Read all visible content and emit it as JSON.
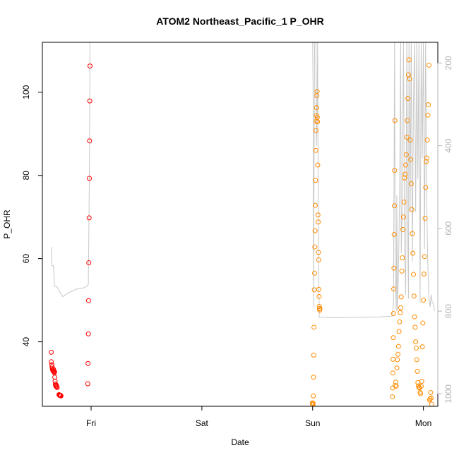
{
  "chart_data": {
    "type": "scatter",
    "title": "ATOM2 Northeast_Pacific_1 P_OHR",
    "xlabel": "Date",
    "ylabel": "P_OHR",
    "x_unit": "days since Thursday 00:00",
    "xlim": [
      2.56,
      6.13
    ],
    "ylim": [
      24.5,
      112
    ],
    "y_ticks": [
      40,
      60,
      80,
      100
    ],
    "x_ticks": [
      {
        "label": "Fri",
        "value": 3
      },
      {
        "label": "Sat",
        "value": 4
      },
      {
        "label": "Sun",
        "value": 5
      },
      {
        "label": "Mon",
        "value": 6
      }
    ],
    "y2": {
      "ylim": [
        1030,
        150
      ],
      "ticks": [
        200,
        400,
        600,
        800,
        1000
      ]
    },
    "colors": {
      "red": "#ff0000",
      "orange": "#ff8c00",
      "line": "#c8c8c8",
      "axis": "#000000",
      "axis2": "#b4b4b4"
    },
    "series": [
      {
        "name": "red",
        "points": [
          [
            2.64,
            37.5
          ],
          [
            2.64,
            35.2
          ],
          [
            2.645,
            34.5
          ],
          [
            2.648,
            34.0
          ],
          [
            2.65,
            33.5
          ],
          [
            2.653,
            33.2
          ],
          [
            2.656,
            33.0
          ],
          [
            2.66,
            33.4
          ],
          [
            2.663,
            33.0
          ],
          [
            2.665,
            32.8
          ],
          [
            2.668,
            32.6
          ],
          [
            2.67,
            32.8
          ],
          [
            2.672,
            31.5
          ],
          [
            2.675,
            30.5
          ],
          [
            2.678,
            29.8
          ],
          [
            2.68,
            29.5
          ],
          [
            2.683,
            29.3
          ],
          [
            2.686,
            29.6
          ],
          [
            2.69,
            29.2
          ],
          [
            2.693,
            29.0
          ],
          [
            2.71,
            27.3
          ],
          [
            2.713,
            27.2
          ],
          [
            2.716,
            27.1
          ],
          [
            2.719,
            27.2
          ],
          [
            2.722,
            27.1
          ],
          [
            2.725,
            27.1
          ],
          [
            2.728,
            27.0
          ],
          [
            2.97,
            29.9
          ],
          [
            2.972,
            34.8
          ],
          [
            2.975,
            41.9
          ],
          [
            2.977,
            49.9
          ],
          [
            2.979,
            59.0
          ],
          [
            2.982,
            69.8
          ],
          [
            2.984,
            79.3
          ],
          [
            2.986,
            88.3
          ],
          [
            2.988,
            97.9
          ],
          [
            2.99,
            106.3
          ]
        ]
      },
      {
        "name": "orange",
        "points": [
          [
            4.998,
            25.3
          ],
          [
            5.0,
            25.0
          ],
          [
            5.002,
            24.8
          ],
          [
            5.004,
            25.2
          ],
          [
            5.006,
            27.0
          ],
          [
            5.008,
            31.5
          ],
          [
            5.01,
            36.8
          ],
          [
            5.012,
            43.5
          ],
          [
            5.015,
            52.5
          ],
          [
            5.018,
            56.5
          ],
          [
            5.02,
            62.8
          ],
          [
            5.022,
            66.7
          ],
          [
            5.024,
            72.8
          ],
          [
            5.026,
            78.8
          ],
          [
            5.028,
            86.0
          ],
          [
            5.03,
            90.8
          ],
          [
            5.032,
            93.0
          ],
          [
            5.034,
            94.4
          ],
          [
            5.036,
            96.3
          ],
          [
            5.038,
            99.2
          ],
          [
            5.04,
            100.2
          ],
          [
            5.042,
            94.0
          ],
          [
            5.044,
            92.9
          ],
          [
            5.046,
            82.5
          ],
          [
            5.048,
            70.5
          ],
          [
            5.05,
            68.8
          ],
          [
            5.052,
            61.5
          ],
          [
            5.054,
            59.7
          ],
          [
            5.056,
            52.6
          ],
          [
            5.058,
            50.9
          ],
          [
            5.06,
            48.5
          ],
          [
            5.062,
            47.9
          ],
          [
            5.064,
            47.6
          ],
          [
            5.066,
            48.0
          ],
          [
            5.72,
            26.8
          ],
          [
            5.722,
            28.9
          ],
          [
            5.724,
            32.5
          ],
          [
            5.726,
            35.8
          ],
          [
            5.728,
            41.0
          ],
          [
            5.73,
            46.8
          ],
          [
            5.732,
            52.7
          ],
          [
            5.734,
            57.7
          ],
          [
            5.736,
            65.8
          ],
          [
            5.738,
            72.7
          ],
          [
            5.74,
            81.2
          ],
          [
            5.742,
            93.2
          ],
          [
            5.745,
            29.5
          ],
          [
            5.75,
            30.3
          ],
          [
            5.755,
            29.3
          ],
          [
            5.76,
            33.7
          ],
          [
            5.765,
            35.7
          ],
          [
            5.77,
            37.0
          ],
          [
            5.775,
            38.9
          ],
          [
            5.78,
            42.5
          ],
          [
            5.785,
            44.8
          ],
          [
            5.79,
            47.0
          ],
          [
            5.795,
            48.2
          ],
          [
            5.8,
            50.8
          ],
          [
            5.805,
            57.0
          ],
          [
            5.81,
            60.2
          ],
          [
            5.815,
            67.0
          ],
          [
            5.82,
            70.0
          ],
          [
            5.825,
            73.6
          ],
          [
            5.83,
            79.4
          ],
          [
            5.835,
            80.3
          ],
          [
            5.84,
            82.5
          ],
          [
            5.845,
            85.0
          ],
          [
            5.85,
            89.2
          ],
          [
            5.855,
            93.2
          ],
          [
            5.86,
            98.5
          ],
          [
            5.865,
            104.2
          ],
          [
            5.87,
            107.8
          ],
          [
            5.875,
            103.2
          ],
          [
            5.88,
            88.5
          ],
          [
            5.885,
            83.8
          ],
          [
            5.89,
            78.0
          ],
          [
            5.895,
            71.8
          ],
          [
            5.9,
            66.0
          ],
          [
            5.905,
            61.3
          ],
          [
            5.91,
            56.2
          ],
          [
            5.915,
            51.0
          ],
          [
            5.92,
            46.0
          ],
          [
            5.925,
            43.5
          ],
          [
            5.93,
            40.0
          ],
          [
            5.935,
            38.5
          ],
          [
            5.94,
            35.7
          ],
          [
            5.945,
            32.9
          ],
          [
            5.95,
            30.2
          ],
          [
            5.955,
            29.4
          ],
          [
            5.96,
            29.0
          ],
          [
            5.965,
            28.9
          ],
          [
            5.97,
            27.8
          ],
          [
            5.975,
            27.5
          ],
          [
            5.98,
            29.3
          ],
          [
            5.985,
            30.5
          ],
          [
            5.99,
            38.8
          ],
          [
            5.995,
            44.5
          ],
          [
            6.0,
            50.0
          ],
          [
            6.005,
            56.3
          ],
          [
            6.01,
            60.5
          ],
          [
            6.015,
            69.7
          ],
          [
            6.02,
            77.1
          ],
          [
            6.025,
            83.3
          ],
          [
            6.03,
            84.2
          ],
          [
            6.035,
            88.5
          ],
          [
            6.04,
            94.5
          ],
          [
            6.045,
            97.0
          ],
          [
            6.05,
            106.5
          ],
          [
            6.055,
            26.0
          ],
          [
            6.06,
            26.3
          ],
          [
            6.065,
            27.8
          ],
          [
            6.07,
            26.5
          ],
          [
            6.075,
            25.0
          ]
        ]
      }
    ],
    "depth_line": [
      [
        2.64,
        645
      ],
      [
        2.645,
        690
      ],
      [
        2.66,
        690
      ],
      [
        2.67,
        740
      ],
      [
        2.69,
        740
      ],
      [
        2.7,
        745
      ],
      [
        2.72,
        755
      ],
      [
        2.745,
        765
      ],
      [
        2.77,
        760
      ],
      [
        2.8,
        755
      ],
      [
        2.84,
        750
      ],
      [
        2.88,
        745
      ],
      [
        2.92,
        745
      ],
      [
        2.96,
        740
      ],
      [
        2.975,
        735
      ],
      [
        2.98,
        600
      ],
      [
        2.985,
        450
      ],
      [
        2.99,
        150
      ],
      [
        5.0,
        150
      ],
      [
        5.005,
        300
      ],
      [
        5.008,
        790
      ],
      [
        5.012,
        500
      ],
      [
        5.018,
        150
      ],
      [
        5.03,
        150
      ],
      [
        5.035,
        400
      ],
      [
        5.04,
        320
      ],
      [
        5.045,
        150
      ],
      [
        5.05,
        540
      ],
      [
        5.055,
        720
      ],
      [
        5.06,
        815
      ],
      [
        5.065,
        815
      ],
      [
        5.1,
        815
      ],
      [
        5.2,
        816
      ],
      [
        5.4,
        815
      ],
      [
        5.6,
        814
      ],
      [
        5.72,
        812
      ],
      [
        5.73,
        780
      ],
      [
        5.74,
        150
      ],
      [
        5.745,
        700
      ],
      [
        5.755,
        800
      ],
      [
        5.76,
        520
      ],
      [
        5.765,
        800
      ],
      [
        5.775,
        700
      ],
      [
        5.785,
        520
      ],
      [
        5.795,
        150
      ],
      [
        5.8,
        660
      ],
      [
        5.81,
        520
      ],
      [
        5.82,
        150
      ],
      [
        5.83,
        650
      ],
      [
        5.84,
        760
      ],
      [
        5.85,
        150
      ],
      [
        5.86,
        650
      ],
      [
        5.865,
        770
      ],
      [
        5.87,
        150
      ],
      [
        5.88,
        560
      ],
      [
        5.89,
        150
      ],
      [
        5.9,
        680
      ],
      [
        5.91,
        300
      ],
      [
        5.92,
        150
      ],
      [
        5.93,
        560
      ],
      [
        5.94,
        150
      ],
      [
        5.95,
        480
      ],
      [
        5.96,
        150
      ],
      [
        5.97,
        780
      ],
      [
        5.98,
        150
      ],
      [
        5.99,
        430
      ],
      [
        6.0,
        150
      ],
      [
        6.01,
        650
      ],
      [
        6.02,
        150
      ],
      [
        6.03,
        540
      ],
      [
        6.04,
        690
      ],
      [
        6.05,
        770
      ],
      [
        6.06,
        790
      ],
      [
        6.07,
        760
      ],
      [
        6.08,
        780
      ],
      [
        6.09,
        780
      ],
      [
        6.1,
        800
      ]
    ]
  }
}
